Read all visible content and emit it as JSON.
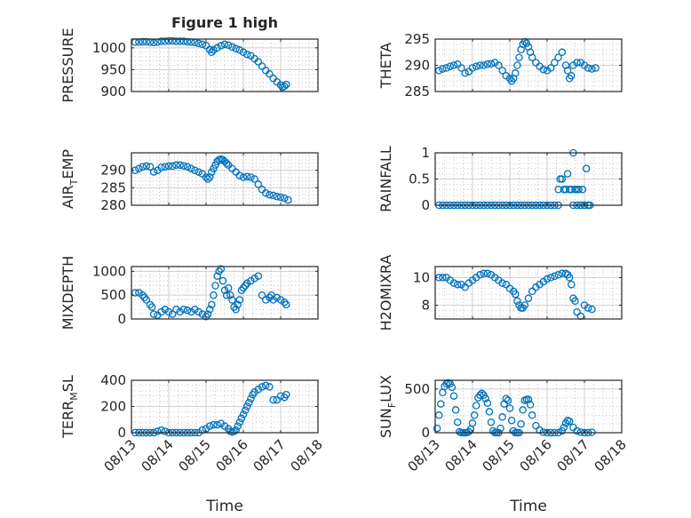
{
  "colors": {
    "marker": "#0072BD",
    "axis": "#262626"
  },
  "chart_data": [
    {
      "type": "scatter",
      "title": "Figure 1 high",
      "ylabel": "PRESSURE",
      "ylim": [
        900,
        1020
      ],
      "yticks": [
        {
          "v": 900,
          "t": "900"
        },
        {
          "v": 950,
          "t": "950"
        },
        {
          "v": 1000,
          "t": "1000"
        }
      ],
      "xlim": [
        0,
        5
      ],
      "xticks": [
        0,
        1,
        2,
        3,
        4,
        5
      ],
      "xticklabels": [
        "08/13",
        "08/14",
        "08/15",
        "08/16",
        "08/17",
        "08/18"
      ],
      "xlabel": "",
      "x_tick_labels_visible": false,
      "x": [
        0.1,
        0.2,
        0.3,
        0.4,
        0.5,
        0.6,
        0.7,
        0.8,
        0.9,
        1.0,
        1.1,
        1.2,
        1.3,
        1.4,
        1.5,
        1.6,
        1.7,
        1.8,
        1.9,
        2.0,
        2.1,
        2.15,
        2.2,
        2.3,
        2.4,
        2.5,
        2.6,
        2.7,
        2.8,
        2.9,
        3.0,
        3.1,
        3.2,
        3.3,
        3.4,
        3.5,
        3.6,
        3.7,
        3.8,
        3.9,
        4.0,
        4.05,
        4.1,
        4.15
      ],
      "y": [
        1013,
        1013,
        1014,
        1014,
        1013,
        1012,
        1013,
        1015,
        1015,
        1016,
        1016,
        1015,
        1015,
        1015,
        1014,
        1013,
        1012,
        1010,
        1008,
        1005,
        996,
        990,
        995,
        1000,
        1005,
        1008,
        1006,
        1002,
        998,
        995,
        990,
        985,
        982,
        975,
        968,
        958,
        948,
        940,
        930,
        922,
        915,
        910,
        912,
        916
      ]
    },
    {
      "type": "scatter",
      "title": "",
      "ylabel": "THETA",
      "ylim": [
        285,
        295
      ],
      "yticks": [
        {
          "v": 285,
          "t": "285"
        },
        {
          "v": 290,
          "t": "290"
        },
        {
          "v": 295,
          "t": "295"
        }
      ],
      "xlim": [
        0,
        5
      ],
      "xticks": [
        0,
        1,
        2,
        3,
        4,
        5
      ],
      "xticklabels": [
        "08/13",
        "08/14",
        "08/15",
        "08/16",
        "08/17",
        "08/18"
      ],
      "xlabel": "",
      "x_tick_labels_visible": false,
      "x": [
        0.1,
        0.2,
        0.3,
        0.4,
        0.5,
        0.6,
        0.7,
        0.8,
        0.9,
        1.0,
        1.1,
        1.2,
        1.3,
        1.4,
        1.5,
        1.6,
        1.7,
        1.8,
        1.9,
        2.0,
        2.05,
        2.1,
        2.15,
        2.2,
        2.25,
        2.3,
        2.35,
        2.4,
        2.45,
        2.5,
        2.55,
        2.6,
        2.7,
        2.8,
        2.9,
        3.0,
        3.1,
        3.2,
        3.3,
        3.4,
        3.5,
        3.55,
        3.6,
        3.65,
        3.7,
        3.8,
        3.9,
        4.0,
        4.1,
        4.2,
        4.3
      ],
      "y": [
        289,
        289.3,
        289.5,
        289.8,
        290,
        290.2,
        289.5,
        288.5,
        288.8,
        289.5,
        289.8,
        290,
        290,
        290.2,
        290.3,
        290.5,
        290,
        289,
        288,
        287.5,
        287,
        287.5,
        288.5,
        290,
        291.5,
        293,
        294,
        294.5,
        294.2,
        293.5,
        292.5,
        291.5,
        290.5,
        289.8,
        289.2,
        289,
        289.5,
        290.5,
        291.5,
        292.5,
        290,
        289,
        287.5,
        288,
        290,
        290.5,
        290.5,
        290,
        289.5,
        289.3,
        289.5
      ]
    },
    {
      "type": "scatter",
      "title": "",
      "ylabel": "AIR_TEMP",
      "ylabel_main": "AIR",
      "ylabel_sub": "T",
      "ylabel_rest": "EMP",
      "ylim": [
        280,
        295
      ],
      "yticks": [
        {
          "v": 280,
          "t": "280"
        },
        {
          "v": 285,
          "t": "285"
        },
        {
          "v": 290,
          "t": "290"
        }
      ],
      "xlim": [
        0,
        5
      ],
      "xticks": [
        0,
        1,
        2,
        3,
        4,
        5
      ],
      "xticklabels": [
        "08/13",
        "08/14",
        "08/15",
        "08/16",
        "08/17",
        "08/18"
      ],
      "xlabel": "",
      "x_tick_labels_visible": false,
      "x": [
        0.1,
        0.2,
        0.3,
        0.4,
        0.5,
        0.6,
        0.7,
        0.8,
        0.9,
        1.0,
        1.1,
        1.2,
        1.3,
        1.4,
        1.5,
        1.6,
        1.7,
        1.8,
        1.9,
        2.0,
        2.05,
        2.1,
        2.15,
        2.2,
        2.25,
        2.3,
        2.35,
        2.4,
        2.45,
        2.5,
        2.55,
        2.6,
        2.7,
        2.8,
        2.9,
        3.0,
        3.1,
        3.2,
        3.3,
        3.4,
        3.5,
        3.6,
        3.7,
        3.8,
        3.9,
        4.0,
        4.1,
        4.2
      ],
      "y": [
        290,
        290.5,
        291,
        291.2,
        291,
        289.5,
        290,
        290.8,
        291,
        291.2,
        291.2,
        291.5,
        291.5,
        291.3,
        291,
        290.5,
        290,
        289.5,
        289,
        288,
        287.5,
        288,
        289.5,
        290.5,
        291.5,
        292.5,
        293,
        293.2,
        293,
        292.5,
        292,
        291.5,
        290.5,
        289.5,
        288.5,
        288,
        288.2,
        288,
        287.5,
        286,
        284.5,
        283.5,
        283,
        282.8,
        282.5,
        282.3,
        282,
        281.5
      ]
    },
    {
      "type": "scatter",
      "title": "",
      "ylabel": "RAINFALL",
      "ylim": [
        0,
        1
      ],
      "yticks": [
        {
          "v": 0,
          "t": "0"
        },
        {
          "v": 0.5,
          "t": "0.5"
        },
        {
          "v": 1,
          "t": "1"
        }
      ],
      "xlim": [
        0,
        5
      ],
      "xticks": [
        0,
        1,
        2,
        3,
        4,
        5
      ],
      "xticklabels": [
        "08/13",
        "08/14",
        "08/15",
        "08/16",
        "08/17",
        "08/18"
      ],
      "xlabel": "",
      "x_tick_labels_visible": false,
      "x": [
        0.1,
        0.2,
        0.3,
        0.4,
        0.5,
        0.6,
        0.7,
        0.8,
        0.9,
        1.0,
        1.1,
        1.2,
        1.3,
        1.4,
        1.5,
        1.6,
        1.7,
        1.8,
        1.9,
        2.0,
        2.1,
        2.2,
        2.3,
        2.4,
        2.5,
        2.6,
        2.7,
        2.8,
        2.9,
        3.0,
        3.1,
        3.2,
        3.3,
        3.3,
        3.35,
        3.4,
        3.45,
        3.5,
        3.55,
        3.6,
        3.65,
        3.7,
        3.75,
        3.8,
        3.85,
        3.9,
        3.95,
        4.0,
        4.05,
        4.1,
        4.15,
        4.1,
        4.0,
        3.9,
        3.8,
        3.7
      ],
      "y": [
        0,
        0,
        0,
        0,
        0,
        0,
        0,
        0,
        0,
        0,
        0,
        0,
        0,
        0,
        0,
        0,
        0,
        0,
        0,
        0,
        0,
        0,
        0,
        0,
        0,
        0,
        0,
        0,
        0,
        0,
        0,
        0,
        0,
        0.3,
        0.5,
        0.5,
        0.3,
        0.3,
        0.6,
        0.3,
        0.3,
        1.0,
        0.3,
        0.3,
        0.3,
        0,
        0.3,
        0,
        0.7,
        0,
        0,
        0,
        0,
        0,
        0,
        0
      ]
    },
    {
      "type": "scatter",
      "title": "",
      "ylabel": "MIXDEPTH",
      "ylim": [
        0,
        1100
      ],
      "yticks": [
        {
          "v": 0,
          "t": "0"
        },
        {
          "v": 500,
          "t": "500"
        },
        {
          "v": 1000,
          "t": "1000"
        }
      ],
      "xlim": [
        0,
        5
      ],
      "xticks": [
        0,
        1,
        2,
        3,
        4,
        5
      ],
      "xticklabels": [
        "08/13",
        "08/14",
        "08/15",
        "08/16",
        "08/17",
        "08/18"
      ],
      "xlabel": "",
      "x_tick_labels_visible": false,
      "x": [
        0.1,
        0.2,
        0.3,
        0.35,
        0.4,
        0.5,
        0.55,
        0.6,
        0.7,
        0.8,
        0.9,
        1.0,
        1.1,
        1.2,
        1.3,
        1.4,
        1.5,
        1.6,
        1.7,
        1.8,
        1.9,
        2.0,
        2.05,
        2.1,
        2.15,
        2.2,
        2.25,
        2.3,
        2.35,
        2.4,
        2.45,
        2.5,
        2.55,
        2.6,
        2.65,
        2.7,
        2.75,
        2.8,
        2.85,
        2.9,
        2.95,
        3.0,
        3.05,
        3.1,
        3.2,
        3.3,
        3.4,
        3.5,
        3.6,
        3.7,
        3.75,
        3.8,
        3.9,
        4.0,
        4.1,
        4.15
      ],
      "y": [
        550,
        550,
        500,
        450,
        400,
        300,
        250,
        100,
        80,
        150,
        200,
        150,
        100,
        200,
        150,
        200,
        180,
        150,
        200,
        150,
        100,
        50,
        100,
        200,
        300,
        500,
        700,
        900,
        1000,
        1050,
        800,
        600,
        500,
        650,
        500,
        400,
        250,
        200,
        300,
        400,
        600,
        650,
        700,
        750,
        800,
        850,
        900,
        500,
        400,
        450,
        500,
        400,
        450,
        400,
        350,
        300
      ]
    },
    {
      "type": "scatter",
      "title": "",
      "ylabel": "H2OMIXRA",
      "ylim": [
        7,
        10.8
      ],
      "yticks": [
        {
          "v": 8,
          "t": "8"
        },
        {
          "v": 10,
          "t": "10"
        }
      ],
      "xlim": [
        0,
        5
      ],
      "xticks": [
        0,
        1,
        2,
        3,
        4,
        5
      ],
      "xticklabels": [
        "08/13",
        "08/14",
        "08/15",
        "08/16",
        "08/17",
        "08/18"
      ],
      "xlabel": "",
      "x_tick_labels_visible": false,
      "x": [
        0.1,
        0.2,
        0.3,
        0.4,
        0.5,
        0.6,
        0.7,
        0.8,
        0.9,
        1.0,
        1.1,
        1.2,
        1.3,
        1.4,
        1.5,
        1.6,
        1.7,
        1.8,
        1.9,
        2.0,
        2.1,
        2.15,
        2.2,
        2.25,
        2.3,
        2.35,
        2.4,
        2.5,
        2.6,
        2.7,
        2.8,
        2.9,
        3.0,
        3.1,
        3.2,
        3.3,
        3.4,
        3.5,
        3.55,
        3.6,
        3.65,
        3.7,
        3.75,
        3.8,
        3.9,
        4.0,
        4.1,
        4.2
      ],
      "y": [
        10,
        10,
        10,
        9.8,
        9.6,
        9.5,
        9.5,
        9.3,
        9.6,
        9.8,
        10,
        10.2,
        10.3,
        10.3,
        10.2,
        10,
        9.8,
        9.6,
        9.5,
        9.2,
        9,
        8.8,
        8.3,
        8,
        7.8,
        7.8,
        8,
        8.5,
        9,
        9.3,
        9.5,
        9.7,
        9.9,
        10,
        10.1,
        10.2,
        10.3,
        10.3,
        10.2,
        10,
        9.5,
        8.5,
        8.3,
        7.5,
        7.2,
        8,
        7.8,
        7.7
      ]
    },
    {
      "type": "scatter",
      "title": "",
      "ylabel": "TERR_MSL",
      "ylabel_main": "TERR",
      "ylabel_sub": "M",
      "ylabel_rest": "SL",
      "ylim": [
        0,
        400
      ],
      "yticks": [
        {
          "v": 0,
          "t": "0"
        },
        {
          "v": 200,
          "t": "200"
        },
        {
          "v": 400,
          "t": "400"
        }
      ],
      "xlim": [
        0,
        5
      ],
      "xticks": [
        0,
        1,
        2,
        3,
        4,
        5
      ],
      "xticklabels": [
        "08/13",
        "08/14",
        "08/15",
        "08/16",
        "08/17",
        "08/18"
      ],
      "xlabel": "Time",
      "x_tick_labels_visible": true,
      "x": [
        0.1,
        0.2,
        0.3,
        0.4,
        0.5,
        0.6,
        0.7,
        0.8,
        0.9,
        1.0,
        1.1,
        1.2,
        1.3,
        1.4,
        1.5,
        1.6,
        1.7,
        1.8,
        1.9,
        2.0,
        2.1,
        2.2,
        2.3,
        2.4,
        2.5,
        2.6,
        2.65,
        2.7,
        2.75,
        2.8,
        2.85,
        2.9,
        2.95,
        3.0,
        3.05,
        3.1,
        3.15,
        3.2,
        3.25,
        3.3,
        3.4,
        3.5,
        3.6,
        3.7,
        3.8,
        3.9,
        4.0,
        4.1,
        4.15
      ],
      "y": [
        0,
        0,
        0,
        0,
        0,
        0,
        10,
        20,
        10,
        0,
        0,
        0,
        0,
        0,
        0,
        0,
        0,
        0,
        20,
        30,
        50,
        60,
        60,
        70,
        50,
        30,
        10,
        5,
        10,
        20,
        50,
        80,
        110,
        140,
        170,
        200,
        230,
        260,
        290,
        310,
        330,
        350,
        360,
        350,
        250,
        250,
        280,
        270,
        290
      ]
    },
    {
      "type": "scatter",
      "title": "",
      "ylabel": "SUN_FLUX",
      "ylabel_main": "SUN",
      "ylabel_sub": "F",
      "ylabel_rest": "LUX",
      "ylim": [
        0,
        600
      ],
      "yticks": [
        {
          "v": 0,
          "t": "0"
        },
        {
          "v": 500,
          "t": "500"
        }
      ],
      "xlim": [
        0,
        5
      ],
      "xticks": [
        0,
        1,
        2,
        3,
        4,
        5
      ],
      "xticklabels": [
        "08/13",
        "08/14",
        "08/15",
        "08/16",
        "08/17",
        "08/18"
      ],
      "xlabel": "Time",
      "x_tick_labels_visible": true,
      "x": [
        0.05,
        0.1,
        0.15,
        0.2,
        0.25,
        0.3,
        0.35,
        0.4,
        0.45,
        0.5,
        0.55,
        0.6,
        0.65,
        0.7,
        0.75,
        0.8,
        0.85,
        0.9,
        0.95,
        1.0,
        1.05,
        1.1,
        1.15,
        1.2,
        1.25,
        1.3,
        1.35,
        1.4,
        1.45,
        1.5,
        1.55,
        1.6,
        1.65,
        1.7,
        1.75,
        1.8,
        1.85,
        1.9,
        1.95,
        2.0,
        2.05,
        2.1,
        2.15,
        2.2,
        2.25,
        2.3,
        2.35,
        2.4,
        2.45,
        2.5,
        2.55,
        2.6,
        2.7,
        2.8,
        2.9,
        3.0,
        3.1,
        3.2,
        3.3,
        3.4,
        3.45,
        3.5,
        3.55,
        3.6,
        3.7,
        3.8,
        3.9,
        4.0,
        4.1,
        4.2
      ],
      "y": [
        50,
        200,
        330,
        460,
        530,
        560,
        570,
        560,
        520,
        420,
        260,
        120,
        10,
        0,
        0,
        0,
        0,
        10,
        40,
        110,
        200,
        310,
        400,
        430,
        450,
        430,
        390,
        340,
        240,
        120,
        20,
        0,
        0,
        0,
        50,
        180,
        330,
        390,
        370,
        280,
        140,
        20,
        0,
        0,
        0,
        100,
        260,
        370,
        380,
        380,
        320,
        200,
        80,
        30,
        5,
        0,
        0,
        0,
        0,
        20,
        60,
        110,
        140,
        130,
        60,
        20,
        5,
        0,
        0,
        5
      ]
    }
  ]
}
